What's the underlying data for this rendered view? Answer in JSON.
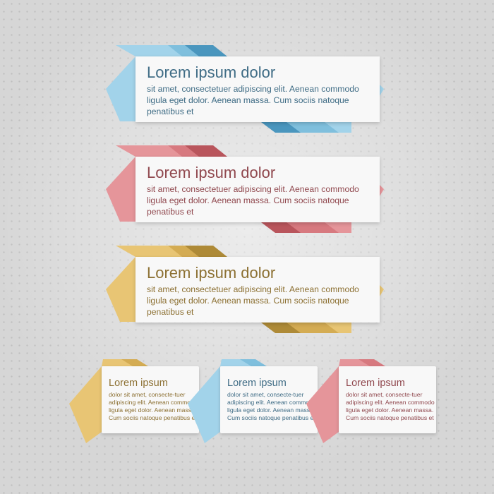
{
  "colors": {
    "blue": {
      "main": "#a2d3ea",
      "mid": "#7fbfdd",
      "dark": "#4a96be",
      "text": "#3f6c85"
    },
    "red": {
      "main": "#e5959a",
      "mid": "#d7797f",
      "dark": "#b9555c",
      "text": "#90484e"
    },
    "yellow": {
      "main": "#e8c574",
      "mid": "#d4ac53",
      "dark": "#ae8a37",
      "text": "#8c7032"
    }
  },
  "banners": [
    {
      "color": "blue",
      "title": "Lorem ipsum dolor",
      "body": "sit amet, consectetuer adipiscing elit. Aenean commodo ligula eget dolor. Aenean massa. Cum sociis natoque penatibus et"
    },
    {
      "color": "red",
      "title": "Lorem ipsum dolor",
      "body": "sit amet, consectetuer adipiscing elit. Aenean commodo ligula eget dolor. Aenean massa. Cum sociis natoque penatibus et"
    },
    {
      "color": "yellow",
      "title": "Lorem ipsum dolor",
      "body": "sit amet, consectetuer adipiscing elit. Aenean commodo ligula eget dolor. Aenean massa. Cum sociis natoque penatibus et"
    }
  ],
  "small_cards": [
    {
      "color": "yellow",
      "title": "Lorem ipsum",
      "body": "dolor sit amet, consecte-tuer adipiscing elit. Aenean commodo ligula eget dolor. Aenean massa. Cum sociis natoque penatibus et"
    },
    {
      "color": "blue",
      "title": "Lorem ipsum",
      "body": "dolor sit amet, consecte-tuer adipiscing elit. Aenean commodo ligula eget dolor. Aenean massa. Cum sociis natoque penatibus et"
    },
    {
      "color": "red",
      "title": "Lorem ipsum",
      "body": "dolor sit amet, consecte-tuer adipiscing elit. Aenean commodo ligula eget dolor. Aenean massa. Cum sociis natoque penatibus et"
    }
  ]
}
